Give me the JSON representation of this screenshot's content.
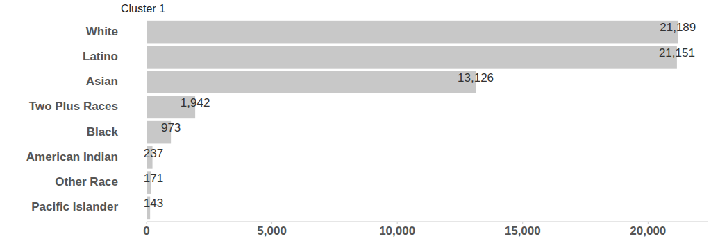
{
  "chart_data": {
    "type": "bar",
    "title": "Cluster 1",
    "orientation": "horizontal",
    "categories": [
      "White",
      "Latino",
      "Asian",
      "Two Plus Races",
      "Black",
      "American Indian",
      "Other Race",
      "Pacific Islander"
    ],
    "values": [
      21189,
      21151,
      13126,
      1942,
      973,
      237,
      171,
      143
    ],
    "value_labels": [
      "21,189",
      "21,151",
      "13,126",
      "1,942",
      "973",
      "237",
      "171",
      "143"
    ],
    "color": "#c8c8c8",
    "xlim": [
      0,
      22400
    ],
    "xticks": [
      0,
      {
        "value": 5000,
        "label": "5,000"
      },
      {
        "value": 10000,
        "label": "10,000"
      },
      {
        "value": 15000,
        "label": "15,000"
      },
      {
        "value": 20000,
        "label": "20,000"
      }
    ],
    "grid": false,
    "data_labels": true
  }
}
